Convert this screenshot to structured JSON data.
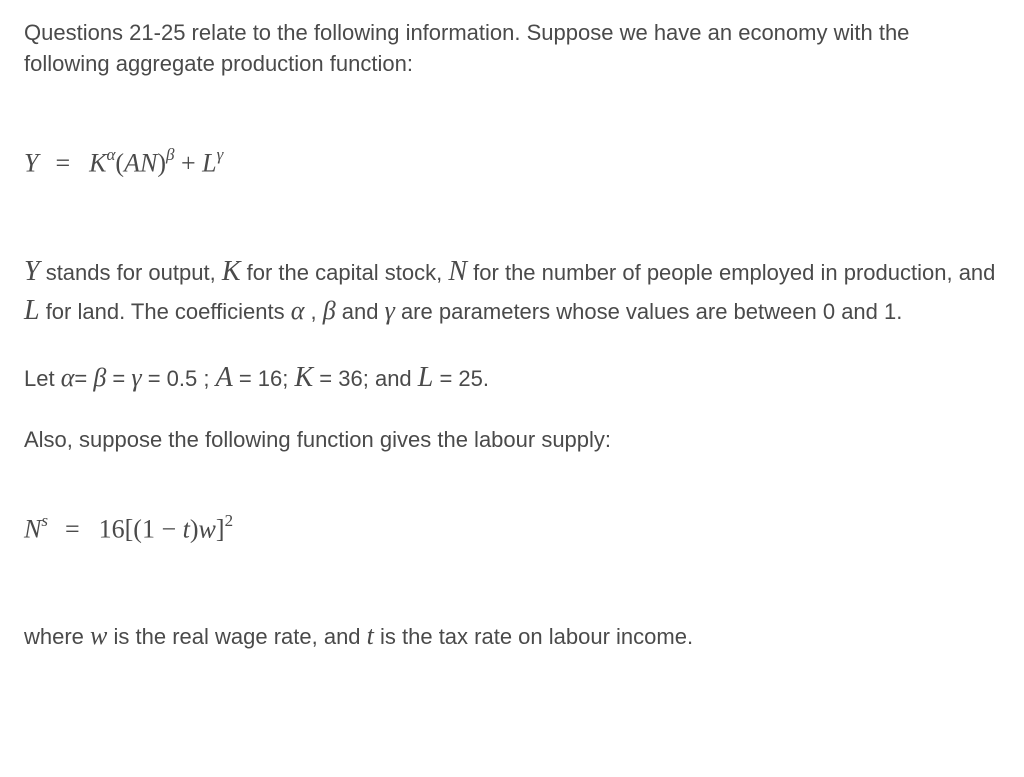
{
  "intro": "Questions 21-25 relate to the following information. Suppose we have an economy with the following aggregate production function:",
  "equation1": {
    "Y": "Y",
    "eq": " = ",
    "K": "K",
    "alpha": "α",
    "open": "(",
    "A": "A",
    "N": "N",
    "close": ")",
    "beta": "β",
    "plus": " + ",
    "L": "L",
    "gamma": "γ"
  },
  "definitions": {
    "part1": " stands for output, ",
    "part2": " for the capital stock, ",
    "part3": " for the number of people employed in production, and ",
    "part4": " for land. The coefficients ",
    "comma": " , ",
    "and1": " and ",
    "part5": " are parameters whose values are between 0 and 1.",
    "Y": "Y",
    "K": "K",
    "N": "N",
    "L": "L",
    "alpha": "α",
    "beta": "β",
    "gamma": "γ"
  },
  "params": {
    "let": "Let ",
    "alpha": "α",
    "eq1": "= ",
    "beta": "β",
    "eq2": " = ",
    "gamma": "γ",
    "eq3": " = 0.5 ; ",
    "A": "A",
    "eq4": " = 16; ",
    "K": "K",
    "eq5": " = 36; and ",
    "L": "L",
    "eq6": " = 25."
  },
  "labour_intro": "Also, suppose the following function gives the labour supply:",
  "equation2": {
    "N": "N",
    "s": "s",
    "eq": " = ",
    "sixteen": "16",
    "open": "[(",
    "one": "1",
    "minus": " − ",
    "t": "t",
    "close1": ")",
    "w": "w",
    "close2": "]",
    "two": "2"
  },
  "final": {
    "where": "where ",
    "w": "w",
    "part1": " is the real wage rate, and ",
    "t": "t",
    "part2": " is the tax rate on labour income."
  }
}
